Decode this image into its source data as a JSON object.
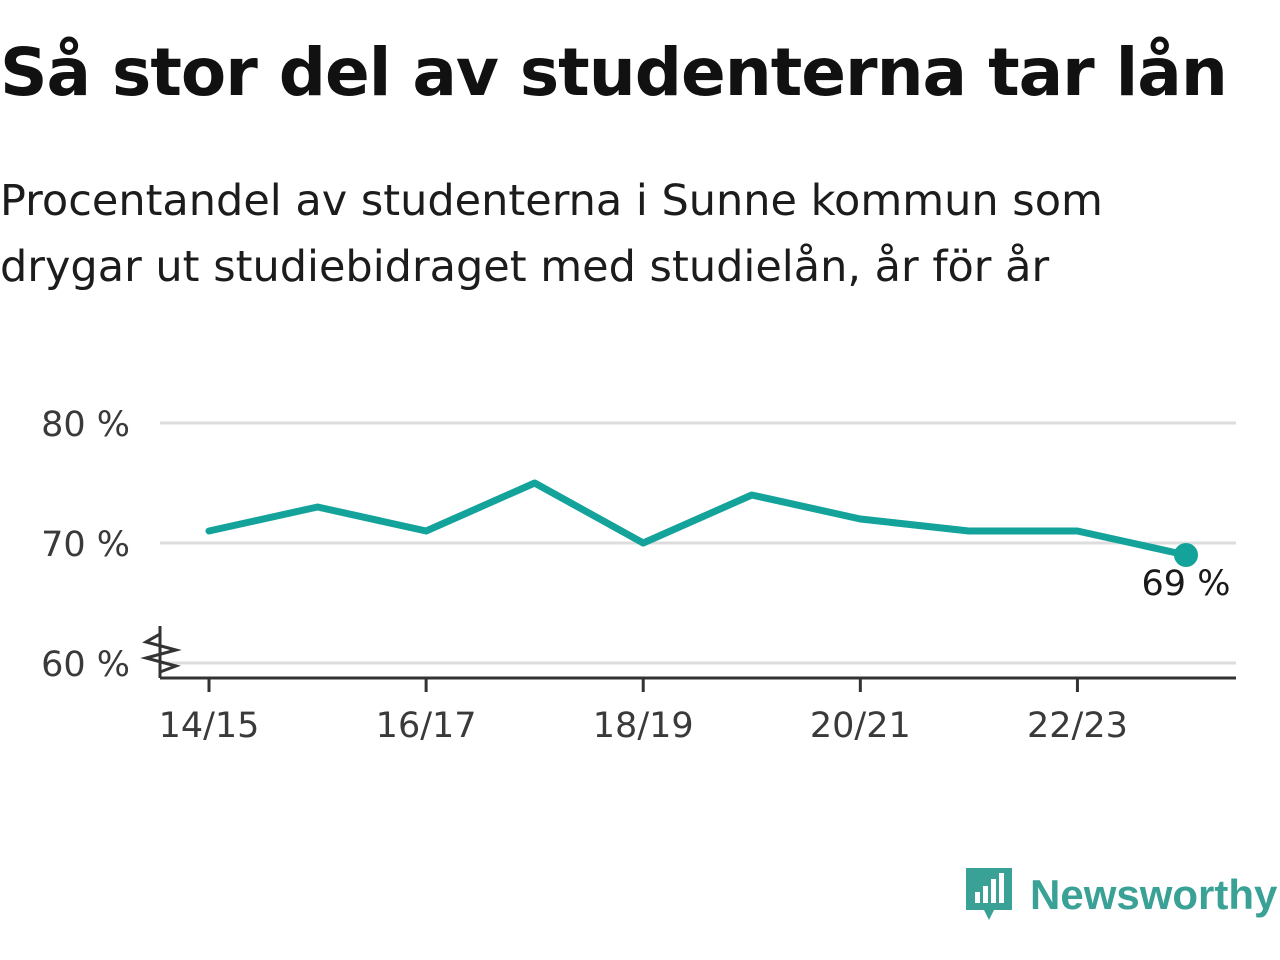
{
  "title": "Så stor del av studenterna tar lån",
  "subtitle": "Procentandel av studenterna i Sunne kommun som drygar ut studiebidraget med studielån, år för år",
  "brand": {
    "name": "Newsworthy",
    "icon": "newsworthy-logo-icon",
    "color": "#3aa196"
  },
  "chart_data": {
    "type": "line",
    "x": [
      "14/15",
      "15/16",
      "16/17",
      "17/18",
      "18/19",
      "19/20",
      "20/21",
      "21/22",
      "22/23",
      "23/24"
    ],
    "values": [
      71,
      73,
      71,
      75,
      70,
      74,
      72,
      71,
      71,
      69
    ],
    "x_tick_labels": [
      "14/15",
      "16/17",
      "18/19",
      "20/21",
      "22/23"
    ],
    "y_ticks": [
      {
        "value": 60,
        "label": "60 %"
      },
      {
        "value": 70,
        "label": "70 %"
      },
      {
        "value": 80,
        "label": "80 %"
      }
    ],
    "ylim": [
      60,
      80
    ],
    "y_axis_break": true,
    "grid": true,
    "last_value_label": "69 %",
    "line_color": "#13a39b",
    "grid_color": "#dddddd",
    "axis_color": "#333333"
  }
}
